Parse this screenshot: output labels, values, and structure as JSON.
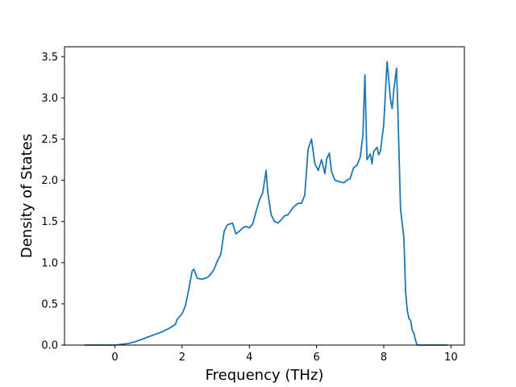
{
  "chart_data": {
    "type": "line",
    "title": "",
    "xlabel": "Frequency (THz)",
    "ylabel": "Density of States",
    "xlim": [
      -1.5,
      10.4
    ],
    "ylim": [
      0,
      3.62
    ],
    "xticks": [
      0,
      2,
      4,
      6,
      8,
      10
    ],
    "yticks": [
      0.0,
      0.5,
      1.0,
      1.5,
      2.0,
      2.5,
      3.0,
      3.5
    ],
    "xtick_labels": [
      "0",
      "2",
      "4",
      "6",
      "8",
      "10"
    ],
    "ytick_labels": [
      "0.0",
      "0.5",
      "1.0",
      "1.5",
      "2.0",
      "2.5",
      "3.0",
      "3.5"
    ],
    "grid": false,
    "legend": "none",
    "series": [
      {
        "color": "#1f77b4",
        "x": [
          -0.9,
          0.0,
          0.2,
          0.4,
          0.6,
          0.8,
          1.0,
          1.2,
          1.4,
          1.6,
          1.8,
          1.85,
          2.0,
          2.1,
          2.2,
          2.3,
          2.35,
          2.45,
          2.6,
          2.75,
          2.85,
          2.95,
          3.05,
          3.15,
          3.25,
          3.35,
          3.5,
          3.6,
          3.7,
          3.8,
          3.9,
          4.0,
          4.1,
          4.2,
          4.3,
          4.4,
          4.5,
          4.55,
          4.65,
          4.75,
          4.85,
          4.95,
          5.05,
          5.15,
          5.3,
          5.45,
          5.55,
          5.65,
          5.75,
          5.85,
          5.95,
          6.05,
          6.15,
          6.25,
          6.3,
          6.38,
          6.45,
          6.55,
          6.7,
          6.82,
          6.9,
          7.0,
          7.1,
          7.2,
          7.3,
          7.38,
          7.44,
          7.5,
          7.6,
          7.65,
          7.7,
          7.8,
          7.85,
          7.9,
          8.0,
          8.1,
          8.15,
          8.2,
          8.25,
          8.3,
          8.38,
          8.42,
          8.5,
          8.6,
          8.65,
          8.7,
          8.75,
          8.8,
          8.85,
          8.9,
          8.95,
          9.0,
          9.1,
          9.9
        ],
        "values": [
          0.0,
          0.0,
          0.01,
          0.02,
          0.04,
          0.07,
          0.1,
          0.13,
          0.16,
          0.2,
          0.25,
          0.31,
          0.38,
          0.48,
          0.68,
          0.9,
          0.92,
          0.81,
          0.8,
          0.82,
          0.86,
          0.92,
          1.02,
          1.1,
          1.38,
          1.46,
          1.48,
          1.35,
          1.38,
          1.42,
          1.44,
          1.42,
          1.47,
          1.62,
          1.76,
          1.85,
          2.12,
          1.85,
          1.58,
          1.5,
          1.48,
          1.52,
          1.57,
          1.58,
          1.67,
          1.72,
          1.72,
          1.82,
          2.38,
          2.5,
          2.2,
          2.12,
          2.25,
          2.08,
          2.26,
          2.33,
          2.1,
          2.0,
          1.98,
          1.97,
          2.0,
          2.02,
          2.15,
          2.18,
          2.28,
          2.55,
          3.28,
          2.25,
          2.32,
          2.2,
          2.35,
          2.4,
          2.31,
          2.35,
          2.68,
          3.44,
          3.22,
          2.98,
          2.87,
          3.1,
          3.36,
          2.85,
          1.65,
          1.3,
          0.65,
          0.42,
          0.32,
          0.3,
          0.18,
          0.14,
          0.05,
          0.0,
          0.0,
          0.0
        ]
      }
    ]
  }
}
